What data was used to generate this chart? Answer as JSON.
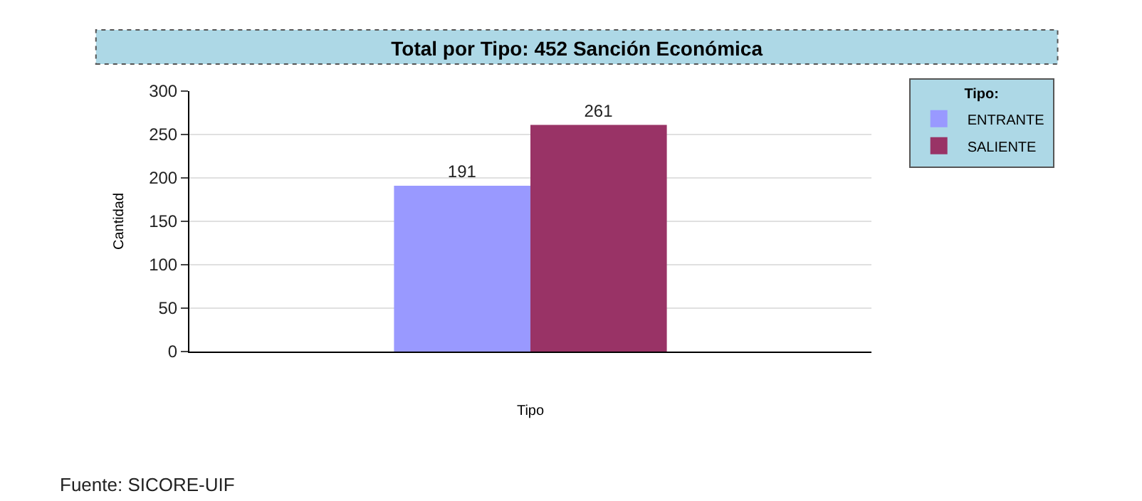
{
  "chart_data": {
    "type": "bar",
    "title": "Total por Tipo: 452 Sanción Económica",
    "xlabel": "Tipo",
    "ylabel": "Cantidad",
    "legend_title": "Tipo:",
    "categories": [
      null
    ],
    "series": [
      {
        "name": "ENTRANTE",
        "color": "#9999ff",
        "values": [
          191
        ]
      },
      {
        "name": "SALIENTE",
        "color": "#993366",
        "values": [
          261
        ]
      }
    ],
    "ylim": [
      0,
      300
    ],
    "yticks": [
      0,
      50,
      100,
      150,
      200,
      250,
      300
    ],
    "grid": "y",
    "legend": "top right",
    "data_labels": true,
    "annotations": [
      "Fuente: SICORE-UIF"
    ]
  }
}
